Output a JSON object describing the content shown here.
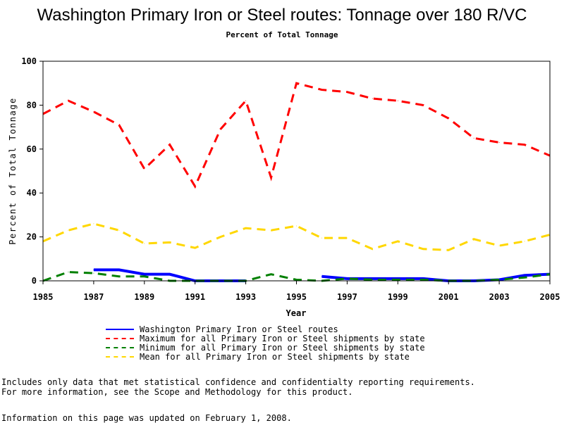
{
  "chart_data": {
    "type": "line",
    "title": "Washington Primary Iron or Steel routes: Tonnage over 180 R/VC",
    "subtitle": "Percent of Total Tonnage",
    "xlabel": "Year",
    "ylabel": "Percent of Total Tonnage",
    "xlim": [
      1985,
      2005
    ],
    "ylim": [
      0,
      100
    ],
    "x_ticks": [
      "1985",
      "1987",
      "1989",
      "1991",
      "1993",
      "1995",
      "1997",
      "1999",
      "2001",
      "2003",
      "2005"
    ],
    "y_ticks": [
      "0",
      "20",
      "40",
      "60",
      "80",
      "100"
    ],
    "grid": false,
    "legend_position": "bottom",
    "series": [
      {
        "name": "Washington Primary Iron or Steel routes",
        "color": "#0000ff",
        "style": "solid",
        "segments": [
          [
            [
              1987,
              5
            ],
            [
              1988,
              5
            ],
            [
              1989,
              3
            ],
            [
              1990,
              3
            ],
            [
              1991,
              0
            ],
            [
              1992,
              0
            ],
            [
              1993,
              0
            ]
          ],
          [
            [
              1996,
              2
            ],
            [
              1997,
              1
            ],
            [
              1998,
              1
            ],
            [
              1999,
              1
            ],
            [
              2000,
              1
            ],
            [
              2001,
              0
            ],
            [
              2002,
              0
            ],
            [
              2003,
              0.5
            ],
            [
              2004,
              2.5
            ],
            [
              2005,
              3
            ]
          ]
        ]
      },
      {
        "name": "Maximum for all Primary Iron or Steel shipments by state",
        "color": "#ff0000",
        "style": "dashed",
        "segments": [
          [
            [
              1985,
              76
            ],
            [
              1986,
              82
            ],
            [
              1987,
              77
            ],
            [
              1988,
              71
            ],
            [
              1989,
              51
            ],
            [
              1990,
              62
            ],
            [
              1991,
              43
            ],
            [
              1992,
              69
            ],
            [
              1993,
              82
            ],
            [
              1994,
              47
            ],
            [
              1995,
              90
            ],
            [
              1996,
              87
            ],
            [
              1997,
              86
            ],
            [
              1998,
              83
            ],
            [
              1999,
              82
            ],
            [
              2000,
              80
            ],
            [
              2001,
              74
            ],
            [
              2002,
              65
            ],
            [
              2003,
              63
            ],
            [
              2004,
              62
            ],
            [
              2005,
              57
            ]
          ]
        ]
      },
      {
        "name": "Minimum for all Primary Iron or Steel shipments by state",
        "color": "#008000",
        "style": "dashed",
        "segments": [
          [
            [
              1985,
              0
            ],
            [
              1986,
              4
            ],
            [
              1987,
              3.5
            ],
            [
              1988,
              2
            ],
            [
              1989,
              2
            ],
            [
              1990,
              0
            ],
            [
              1991,
              0
            ],
            [
              1992,
              0
            ],
            [
              1993,
              0
            ],
            [
              1994,
              3
            ],
            [
              1995,
              0.5
            ],
            [
              1996,
              0
            ],
            [
              1997,
              1
            ],
            [
              1998,
              0.5
            ],
            [
              1999,
              0.5
            ],
            [
              2000,
              0.5
            ],
            [
              2001,
              0
            ],
            [
              2002,
              0
            ],
            [
              2003,
              0.5
            ],
            [
              2004,
              1.5
            ],
            [
              2005,
              3
            ]
          ]
        ]
      },
      {
        "name": "Mean for all Primary Iron or Steel shipments by state",
        "color": "#ffd700",
        "style": "dashed",
        "segments": [
          [
            [
              1985,
              18
            ],
            [
              1986,
              23
            ],
            [
              1987,
              26
            ],
            [
              1988,
              23
            ],
            [
              1989,
              17
            ],
            [
              1990,
              17.5
            ],
            [
              1991,
              15
            ],
            [
              1992,
              20
            ],
            [
              1993,
              24
            ],
            [
              1994,
              23
            ],
            [
              1995,
              25
            ],
            [
              1996,
              19.5
            ],
            [
              1997,
              19.5
            ],
            [
              1998,
              14.5
            ],
            [
              1999,
              18
            ],
            [
              2000,
              14.5
            ],
            [
              2001,
              14
            ],
            [
              2002,
              19
            ],
            [
              2003,
              16
            ],
            [
              2004,
              18
            ],
            [
              2005,
              21
            ]
          ]
        ]
      }
    ]
  },
  "notes": [
    "Includes only data that met statistical confidence and confidentialty reporting requirements.",
    "For more information, see the Scope and Methodology for this product."
  ],
  "updated": "Information on this page was updated on February 1, 2008."
}
